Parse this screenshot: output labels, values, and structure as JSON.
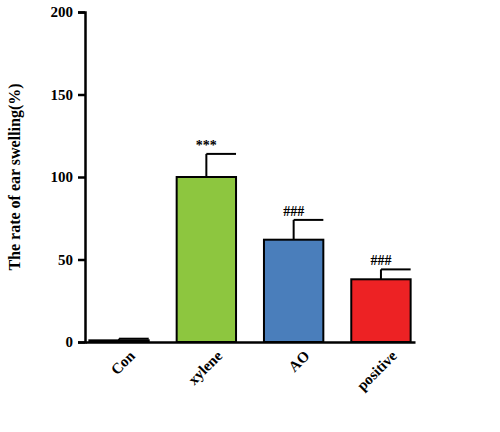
{
  "chart_data": {
    "type": "bar",
    "y_label": "The rate of ear swelling(%)",
    "categories": [
      "Con",
      "xylene",
      "AO",
      "positive"
    ],
    "values": [
      1,
      100,
      62,
      38
    ],
    "errors": [
      1,
      14,
      12,
      6
    ],
    "annotations": [
      null,
      "***",
      "###",
      "###"
    ],
    "colors": [
      "#ffffff",
      "#8dc63f",
      "#4a7ebb",
      "#ed2224"
    ],
    "ylim": [
      0,
      200
    ],
    "yticks": [
      0,
      50,
      100,
      150,
      200
    ],
    "grid": false
  }
}
